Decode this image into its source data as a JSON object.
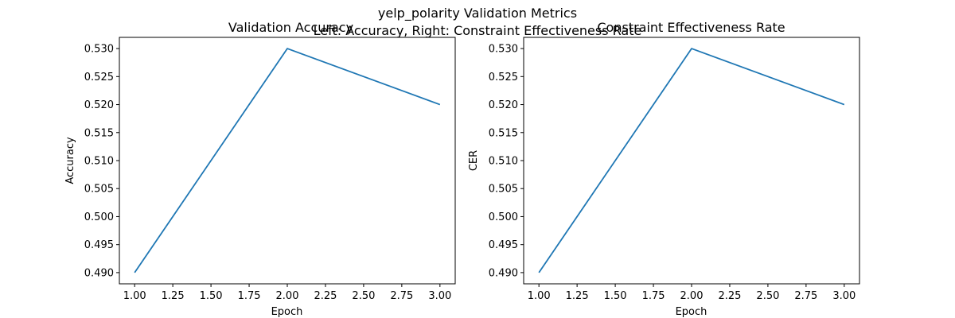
{
  "figure": {
    "suptitle_line1": "yelp_polarity Validation Metrics",
    "suptitle_line2": "Left: Accuracy, Right: Constraint Effectiveness Rate"
  },
  "chart_data": [
    {
      "type": "line",
      "title": "Validation Accuracy",
      "xlabel": "Epoch",
      "ylabel": "Accuracy",
      "x": [
        1,
        2,
        3
      ],
      "series": [
        {
          "values": [
            0.49,
            0.53,
            0.52
          ],
          "color": "#1f77b4"
        }
      ],
      "xlim": [
        0.9,
        3.1
      ],
      "ylim": [
        0.488,
        0.532
      ],
      "xticks": [
        "1.00",
        "1.25",
        "1.50",
        "1.75",
        "2.00",
        "2.25",
        "2.50",
        "2.75",
        "3.00"
      ],
      "yticks": [
        "0.490",
        "0.495",
        "0.500",
        "0.505",
        "0.510",
        "0.515",
        "0.520",
        "0.525",
        "0.530"
      ],
      "grid": false
    },
    {
      "type": "line",
      "title": "Constraint Effectiveness Rate",
      "xlabel": "Epoch",
      "ylabel": "CER",
      "x": [
        1,
        2,
        3
      ],
      "series": [
        {
          "values": [
            0.49,
            0.53,
            0.52
          ],
          "color": "#1f77b4"
        }
      ],
      "xlim": [
        0.9,
        3.1
      ],
      "ylim": [
        0.488,
        0.532
      ],
      "xticks": [
        "1.00",
        "1.25",
        "1.50",
        "1.75",
        "2.00",
        "2.25",
        "2.50",
        "2.75",
        "3.00"
      ],
      "yticks": [
        "0.490",
        "0.495",
        "0.500",
        "0.505",
        "0.510",
        "0.515",
        "0.520",
        "0.525",
        "0.530"
      ],
      "grid": false
    }
  ]
}
